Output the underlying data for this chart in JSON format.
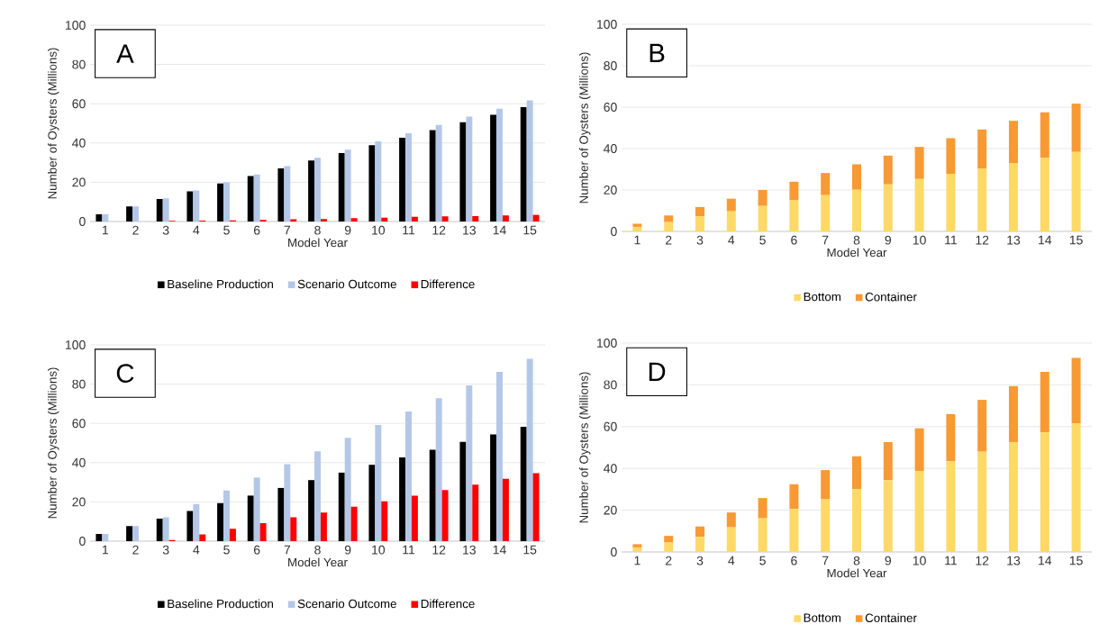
{
  "chart_data": [
    {
      "type": "bar",
      "annotations": [
        "A"
      ],
      "xlabel": "Model Year",
      "ylabel": "Number of Oysters (Millions)",
      "categories": [
        "1",
        "2",
        "3",
        "4",
        "5",
        "6",
        "7",
        "8",
        "9",
        "10",
        "11",
        "12",
        "13",
        "14",
        "15"
      ],
      "ylim": [
        0,
        100
      ],
      "yticks": [
        0,
        20,
        40,
        60,
        80,
        100
      ],
      "grid": "y",
      "legend": "bottom",
      "series": [
        {
          "name": "Baseline Production",
          "color": "#000000",
          "values": [
            3.7,
            7.7,
            11.5,
            15.4,
            19.4,
            23.2,
            27.1,
            31.1,
            34.9,
            38.9,
            42.6,
            46.6,
            50.6,
            54.4,
            58.3
          ]
        },
        {
          "name": "Scenario Outcome",
          "color": "#b4c7e7",
          "values": [
            3.7,
            7.7,
            11.8,
            15.8,
            20.0,
            24.0,
            28.2,
            32.4,
            36.6,
            40.8,
            45.0,
            49.2,
            53.4,
            57.5,
            61.7
          ]
        },
        {
          "name": "Difference",
          "color": "#ff0000",
          "values": [
            0,
            0,
            0.3,
            0.4,
            0.6,
            0.8,
            1.1,
            1.3,
            1.7,
            1.9,
            2.4,
            2.6,
            2.8,
            3.1,
            3.4
          ]
        }
      ]
    },
    {
      "type": "bar",
      "stacked": true,
      "annotations": [
        "B"
      ],
      "xlabel": "Model Year",
      "ylabel": "Number of Oysters (Millions)",
      "categories": [
        "1",
        "2",
        "3",
        "4",
        "5",
        "6",
        "7",
        "8",
        "9",
        "10",
        "11",
        "12",
        "13",
        "14",
        "15"
      ],
      "ylim": [
        0,
        100
      ],
      "yticks": [
        0,
        20,
        40,
        60,
        80,
        100
      ],
      "grid": "y",
      "legend": "bottom",
      "series": [
        {
          "name": "Bottom",
          "color": "#ffd966",
          "values": [
            2.2,
            4.5,
            7.2,
            9.7,
            12.3,
            15.0,
            17.5,
            20.1,
            22.7,
            25.3,
            27.8,
            30.4,
            33.0,
            35.5,
            38.4
          ]
        },
        {
          "name": "Container",
          "color": "#f79a33",
          "values": [
            1.5,
            3.2,
            4.6,
            6.1,
            7.7,
            9.0,
            10.7,
            12.3,
            13.9,
            15.5,
            17.2,
            18.8,
            20.4,
            22.0,
            23.3
          ]
        }
      ]
    },
    {
      "type": "bar",
      "annotations": [
        "C"
      ],
      "xlabel": "Model Year",
      "ylabel": "Number of Oysters (Millions)",
      "categories": [
        "1",
        "2",
        "3",
        "4",
        "5",
        "6",
        "7",
        "8",
        "9",
        "10",
        "11",
        "12",
        "13",
        "14",
        "15"
      ],
      "ylim": [
        0,
        100
      ],
      "yticks": [
        0,
        20,
        40,
        60,
        80,
        100
      ],
      "grid": "y",
      "legend": "bottom",
      "series": [
        {
          "name": "Baseline Production",
          "color": "#000000",
          "values": [
            3.7,
            7.7,
            11.5,
            15.4,
            19.4,
            23.2,
            27.1,
            31.1,
            34.9,
            38.9,
            42.6,
            46.6,
            50.6,
            54.4,
            58.3
          ]
        },
        {
          "name": "Scenario Outcome",
          "color": "#b4c7e7",
          "values": [
            3.7,
            7.7,
            12.2,
            18.9,
            25.8,
            32.4,
            39.2,
            45.8,
            52.6,
            59.2,
            66.0,
            72.8,
            79.4,
            86.2,
            92.9
          ]
        },
        {
          "name": "Difference",
          "color": "#ff0000",
          "values": [
            0,
            0,
            0.6,
            3.4,
            6.3,
            9.2,
            12.1,
            14.6,
            17.5,
            20.3,
            23.2,
            26.0,
            28.8,
            31.8,
            34.6
          ]
        }
      ]
    },
    {
      "type": "bar",
      "stacked": true,
      "annotations": [
        "D"
      ],
      "xlabel": "Model Year",
      "ylabel": "Number of Oysters (Millions)",
      "categories": [
        "1",
        "2",
        "3",
        "4",
        "5",
        "6",
        "7",
        "8",
        "9",
        "10",
        "11",
        "12",
        "13",
        "14",
        "15"
      ],
      "ylim": [
        0,
        100
      ],
      "yticks": [
        0,
        20,
        40,
        60,
        80,
        100
      ],
      "grid": "y",
      "legend": "bottom",
      "series": [
        {
          "name": "Bottom",
          "color": "#ffd966",
          "values": [
            2.2,
            4.5,
            7.2,
            11.8,
            16.1,
            20.6,
            25.2,
            30.0,
            34.4,
            38.8,
            43.4,
            48.0,
            52.6,
            57.2,
            61.6
          ]
        },
        {
          "name": "Container",
          "color": "#f79a33",
          "values": [
            1.5,
            3.2,
            5.0,
            7.1,
            9.7,
            11.8,
            14.0,
            15.8,
            18.2,
            20.4,
            22.6,
            24.8,
            26.8,
            29.0,
            31.3
          ]
        }
      ]
    }
  ]
}
